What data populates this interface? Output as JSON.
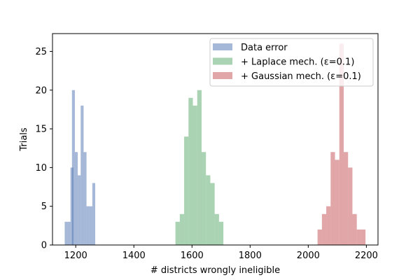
{
  "chart_data": {
    "type": "bar",
    "histogram": true,
    "xlabel": "# districts wrongly ineligible",
    "ylabel": "Trials",
    "xlim": [
      1120,
      2240
    ],
    "ylim": [
      0,
      27.3
    ],
    "x_ticks": [
      1200,
      1400,
      1600,
      1800,
      2000,
      2200
    ],
    "y_ticks": [
      0,
      5,
      10,
      15,
      20,
      25
    ],
    "grid": false,
    "legend_position": "top-right",
    "series": [
      {
        "name": "Data error",
        "color": "#4c72b0",
        "bin_width": 10,
        "bins": [
          {
            "x0": 1162,
            "count": 3
          },
          {
            "x0": 1172,
            "count": 3
          },
          {
            "x0": 1182,
            "count": 10
          },
          {
            "x0": 1187,
            "count": 20
          },
          {
            "x0": 1197,
            "count": 12
          },
          {
            "x0": 1207,
            "count": 9
          },
          {
            "x0": 1217,
            "count": 18
          },
          {
            "x0": 1227,
            "count": 12
          },
          {
            "x0": 1237,
            "count": 5
          },
          {
            "x0": 1247,
            "count": 5
          },
          {
            "x0": 1257,
            "count": 8
          }
        ]
      },
      {
        "name": "+ Laplace mech. (ε=0.1)",
        "color": "#55a868",
        "bin_width": 15,
        "bins": [
          {
            "x0": 1543,
            "count": 3
          },
          {
            "x0": 1558,
            "count": 4
          },
          {
            "x0": 1573,
            "count": 14
          },
          {
            "x0": 1588,
            "count": 19
          },
          {
            "x0": 1603,
            "count": 18
          },
          {
            "x0": 1618,
            "count": 20
          },
          {
            "x0": 1633,
            "count": 12
          },
          {
            "x0": 1648,
            "count": 9
          },
          {
            "x0": 1663,
            "count": 8
          },
          {
            "x0": 1678,
            "count": 4
          },
          {
            "x0": 1693,
            "count": 3
          }
        ]
      },
      {
        "name": "+ Gaussian mech. (ε=0.1)",
        "color": "#c44e52",
        "bin_width": 15,
        "bins": [
          {
            "x0": 2032,
            "count": 2
          },
          {
            "x0": 2047,
            "count": 4
          },
          {
            "x0": 2062,
            "count": 5
          },
          {
            "x0": 2077,
            "count": 12
          },
          {
            "x0": 2092,
            "count": 11
          },
          {
            "x0": 2107,
            "count": 26
          },
          {
            "x0": 2122,
            "count": 12
          },
          {
            "x0": 2137,
            "count": 10
          },
          {
            "x0": 2152,
            "count": 4
          },
          {
            "x0": 2167,
            "count": 2
          },
          {
            "x0": 2182,
            "count": 2
          }
        ]
      }
    ]
  }
}
